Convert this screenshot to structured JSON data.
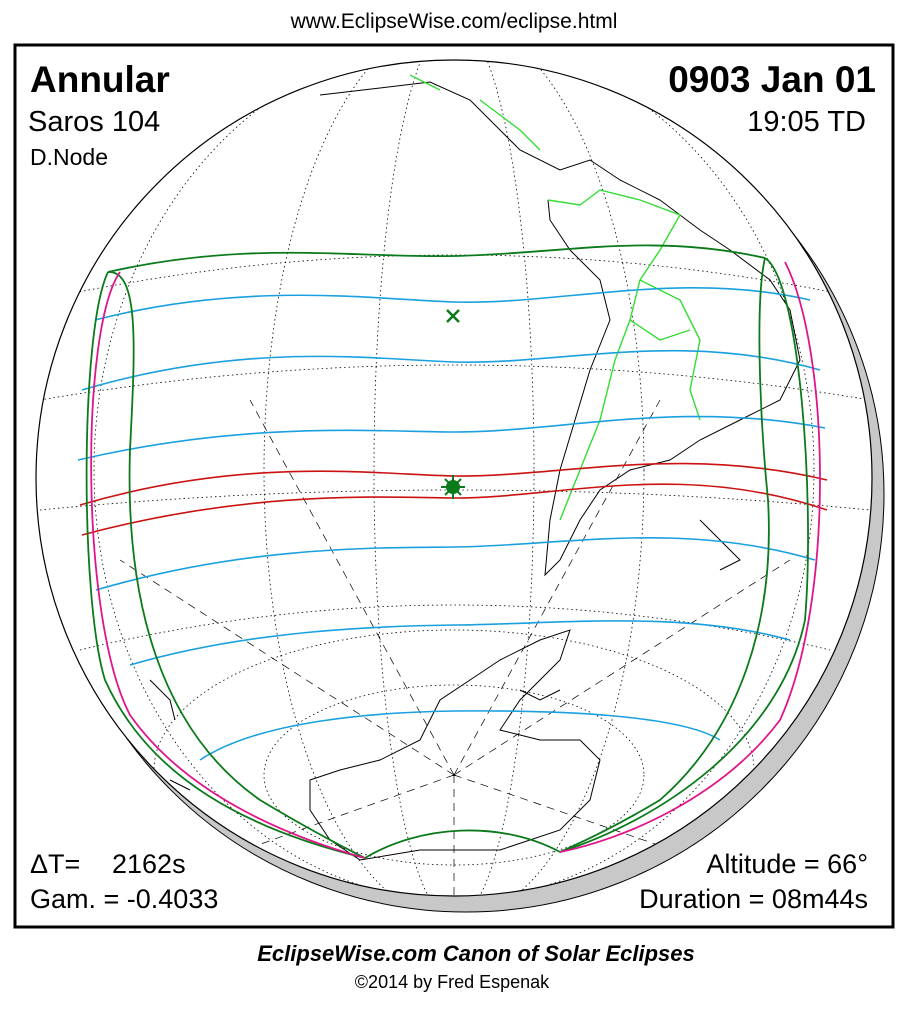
{
  "url": "www.EclipseWise.com/eclipse.html",
  "header": {
    "eclipse_type": "Annular",
    "date": "0903 Jan 01",
    "saros": "Saros 104",
    "time": "19:05 TD",
    "node": "D.Node"
  },
  "footer_info": {
    "delta_t_label": "ΔT=",
    "delta_t_value": "2162s",
    "gamma": "Gam. = -0.4033",
    "altitude": "Altitude = 66°",
    "duration": "Duration = 08m44s"
  },
  "credits": {
    "title": "EclipseWise.com Canon of Solar Eclipses",
    "copyright": "©2014 by Fred Espenak"
  }
}
